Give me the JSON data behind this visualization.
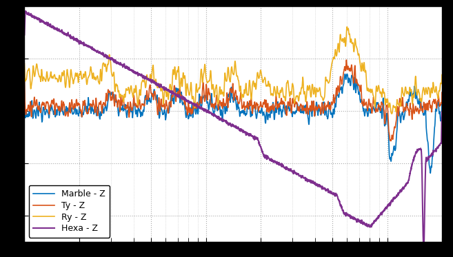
{
  "title": "",
  "xlabel": "",
  "ylabel": "",
  "xlim": [
    1,
    200
  ],
  "ylim": [
    -70,
    20
  ],
  "yticks": [
    -60,
    -40,
    -20,
    0,
    20
  ],
  "xticks": [
    1,
    2,
    5,
    10,
    20,
    50,
    100,
    200
  ],
  "colors": {
    "marble": "#0072bd",
    "ty": "#d95319",
    "ry": "#edb120",
    "hexa": "#7e2f8e"
  },
  "legend_labels": [
    "Marble - Z",
    "Ty - Z",
    "Ry - Z",
    "Hexa - Z"
  ],
  "background_color": "#ffffff",
  "axes_facecolor": "#ffffff",
  "figure_facecolor": "#000000",
  "grid_color": "#aaaaaa",
  "tick_color": "#000000",
  "spine_color": "#000000"
}
